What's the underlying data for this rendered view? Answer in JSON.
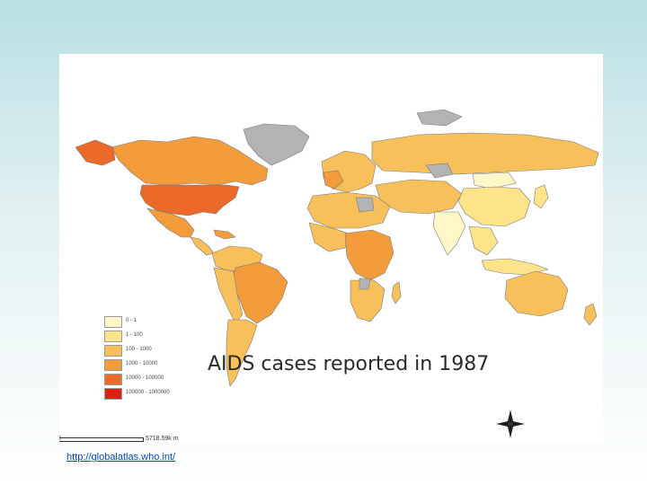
{
  "title": "AIDS cases reported in  1987",
  "legend": [
    {
      "label": "0 - 1",
      "color": "#fff7c8"
    },
    {
      "label": "1 - 100",
      "color": "#fde38a"
    },
    {
      "label": "100 - 1000",
      "color": "#f8c05a"
    },
    {
      "label": "1000 - 10000",
      "color": "#f39c3c"
    },
    {
      "label": "10000 - 100000",
      "color": "#eb6a2a"
    },
    {
      "label": "100000 - 1000000",
      "color": "#e01f14"
    }
  ],
  "no_data_color": "#b3b3b3",
  "scale": {
    "start": "0",
    "end": "5718.59k m"
  },
  "source_link": "http://globalatlas.who.int/",
  "icons": {
    "compass": "north-arrow-icon"
  }
}
